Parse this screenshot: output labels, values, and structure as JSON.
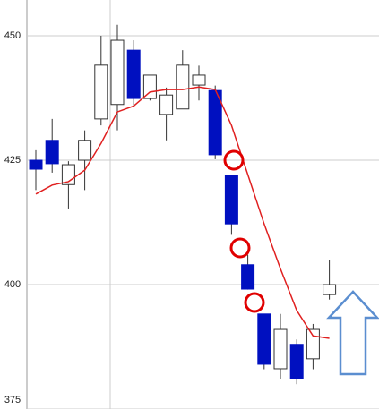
{
  "chart_data": {
    "type": "candlestick",
    "categories": [
      null,
      null,
      null,
      null,
      null,
      null,
      null,
      null,
      null,
      null,
      null,
      null,
      null,
      null,
      null,
      null,
      null,
      null,
      null
    ],
    "open": [
      425,
      429,
      420.1,
      425,
      433.3,
      436.2,
      447.1,
      437.4,
      434.2,
      435.3,
      440.1,
      439,
      422,
      404,
      394.1,
      383.1,
      388,
      385.1,
      398
    ],
    "high": [
      427,
      433.3,
      424.8,
      431,
      450,
      452.2,
      449.1,
      442.1,
      439.6,
      447.1,
      444,
      440,
      422,
      406,
      394.1,
      394.1,
      389,
      392.1,
      405
    ],
    "low": [
      419,
      422.5,
      415.3,
      419,
      432,
      431,
      436,
      437,
      429,
      435.3,
      437,
      425.2,
      410,
      399,
      383,
      381,
      380,
      383,
      397
    ],
    "close": [
      423.2,
      424.3,
      424.1,
      429,
      444.1,
      449.1,
      437.4,
      442.1,
      438.1,
      444.1,
      442.1,
      426.1,
      412.2,
      399.1,
      384,
      391,
      381.1,
      391,
      400
    ],
    "up_color": "#ffffff",
    "down_color": "#0010c0",
    "series": [
      {
        "color": "#e02020",
        "values": [
          418.2,
          420,
          420.7,
          423,
          428.4,
          434.7,
          435.9,
          438.7,
          439.2,
          439.2,
          439.7,
          439.2,
          432,
          422.1,
          412.2,
          403.2,
          394.8,
          389.7,
          389.2
        ]
      }
    ],
    "ylim": [
      375,
      457.2
    ],
    "yticks": [
      375,
      400,
      425,
      450
    ],
    "grid": true
  }
}
